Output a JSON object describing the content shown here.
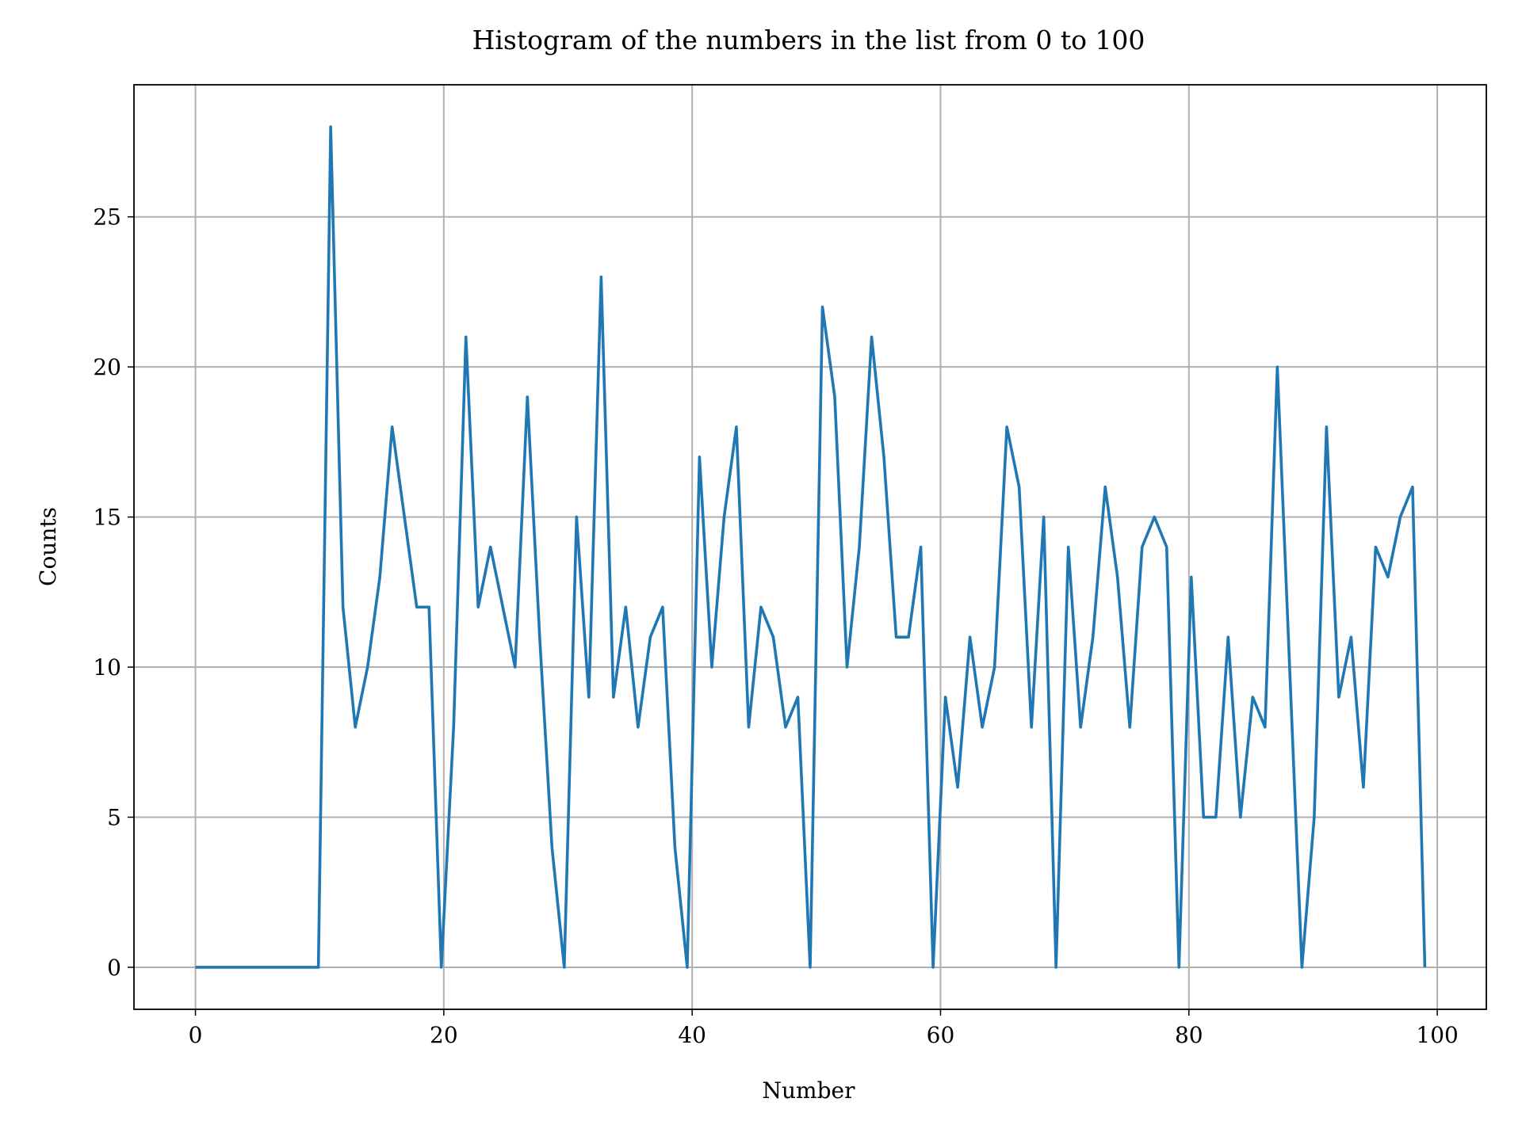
{
  "chart_data": {
    "type": "line",
    "title": "Histogram of the numbers in the list from 0 to 100",
    "x_label": "Number",
    "y_label": "Counts",
    "x": [
      0,
      0.99,
      1.98,
      2.97,
      3.96,
      4.95,
      5.94,
      6.93,
      7.92,
      8.91,
      9.9,
      10.89,
      11.88,
      12.87,
      13.86,
      14.85,
      15.84,
      16.83,
      17.82,
      18.81,
      19.8,
      20.79,
      21.78,
      22.77,
      23.76,
      24.75,
      25.74,
      26.73,
      27.72,
      28.71,
      29.7,
      30.69,
      31.68,
      32.67,
      33.66,
      34.65,
      35.64,
      36.63,
      37.62,
      38.61,
      39.6,
      40.59,
      41.58,
      42.57,
      43.56,
      44.55,
      45.54,
      46.53,
      47.52,
      48.51,
      49.5,
      50.49,
      51.48,
      52.47,
      53.46,
      54.45,
      55.44,
      56.43,
      57.42,
      58.41,
      59.4,
      60.39,
      61.38,
      62.37,
      63.36,
      64.35,
      65.34,
      66.33,
      67.32,
      68.31,
      69.3,
      70.29,
      71.28,
      72.27,
      73.26,
      74.25,
      75.24,
      76.23,
      77.22,
      78.21,
      79.2,
      80.19,
      81.18,
      82.17,
      83.16,
      84.15,
      85.14,
      86.13,
      87.12,
      88.11,
      89.1,
      90.09,
      91.08,
      92.07,
      93.06,
      94.05,
      95.04,
      96.03,
      97.02,
      98.01,
      99
    ],
    "series": [
      {
        "color": "#1f77b4",
        "values": [
          0,
          0,
          0,
          0,
          0,
          0,
          0,
          0,
          0,
          0,
          0,
          28,
          12,
          8,
          10,
          13,
          18,
          15,
          12,
          12,
          0,
          8,
          21,
          12,
          14,
          12,
          10,
          19,
          11,
          4,
          0,
          15,
          9,
          23,
          9,
          12,
          8,
          11,
          12,
          4,
          0,
          17,
          10,
          15,
          18,
          8,
          12,
          11,
          8,
          9,
          0,
          22,
          19,
          10,
          14,
          21,
          17,
          11,
          11,
          14,
          0,
          9,
          6,
          11,
          8,
          10,
          18,
          16,
          8,
          15,
          0,
          14,
          8,
          11,
          16,
          13,
          8,
          14,
          15,
          14,
          0,
          13,
          5,
          5,
          11,
          5,
          9,
          8,
          20,
          10,
          0,
          5,
          18,
          9,
          11,
          6,
          14,
          13,
          15,
          16,
          0
        ]
      }
    ],
    "xlim": [
      -4.95,
      103.95
    ],
    "ylim": [
      -1.4,
      29.4
    ],
    "xticks": [
      0,
      20,
      40,
      60,
      80,
      100
    ],
    "yticks": [
      0,
      5,
      10,
      15,
      20,
      25
    ],
    "grid": true
  }
}
